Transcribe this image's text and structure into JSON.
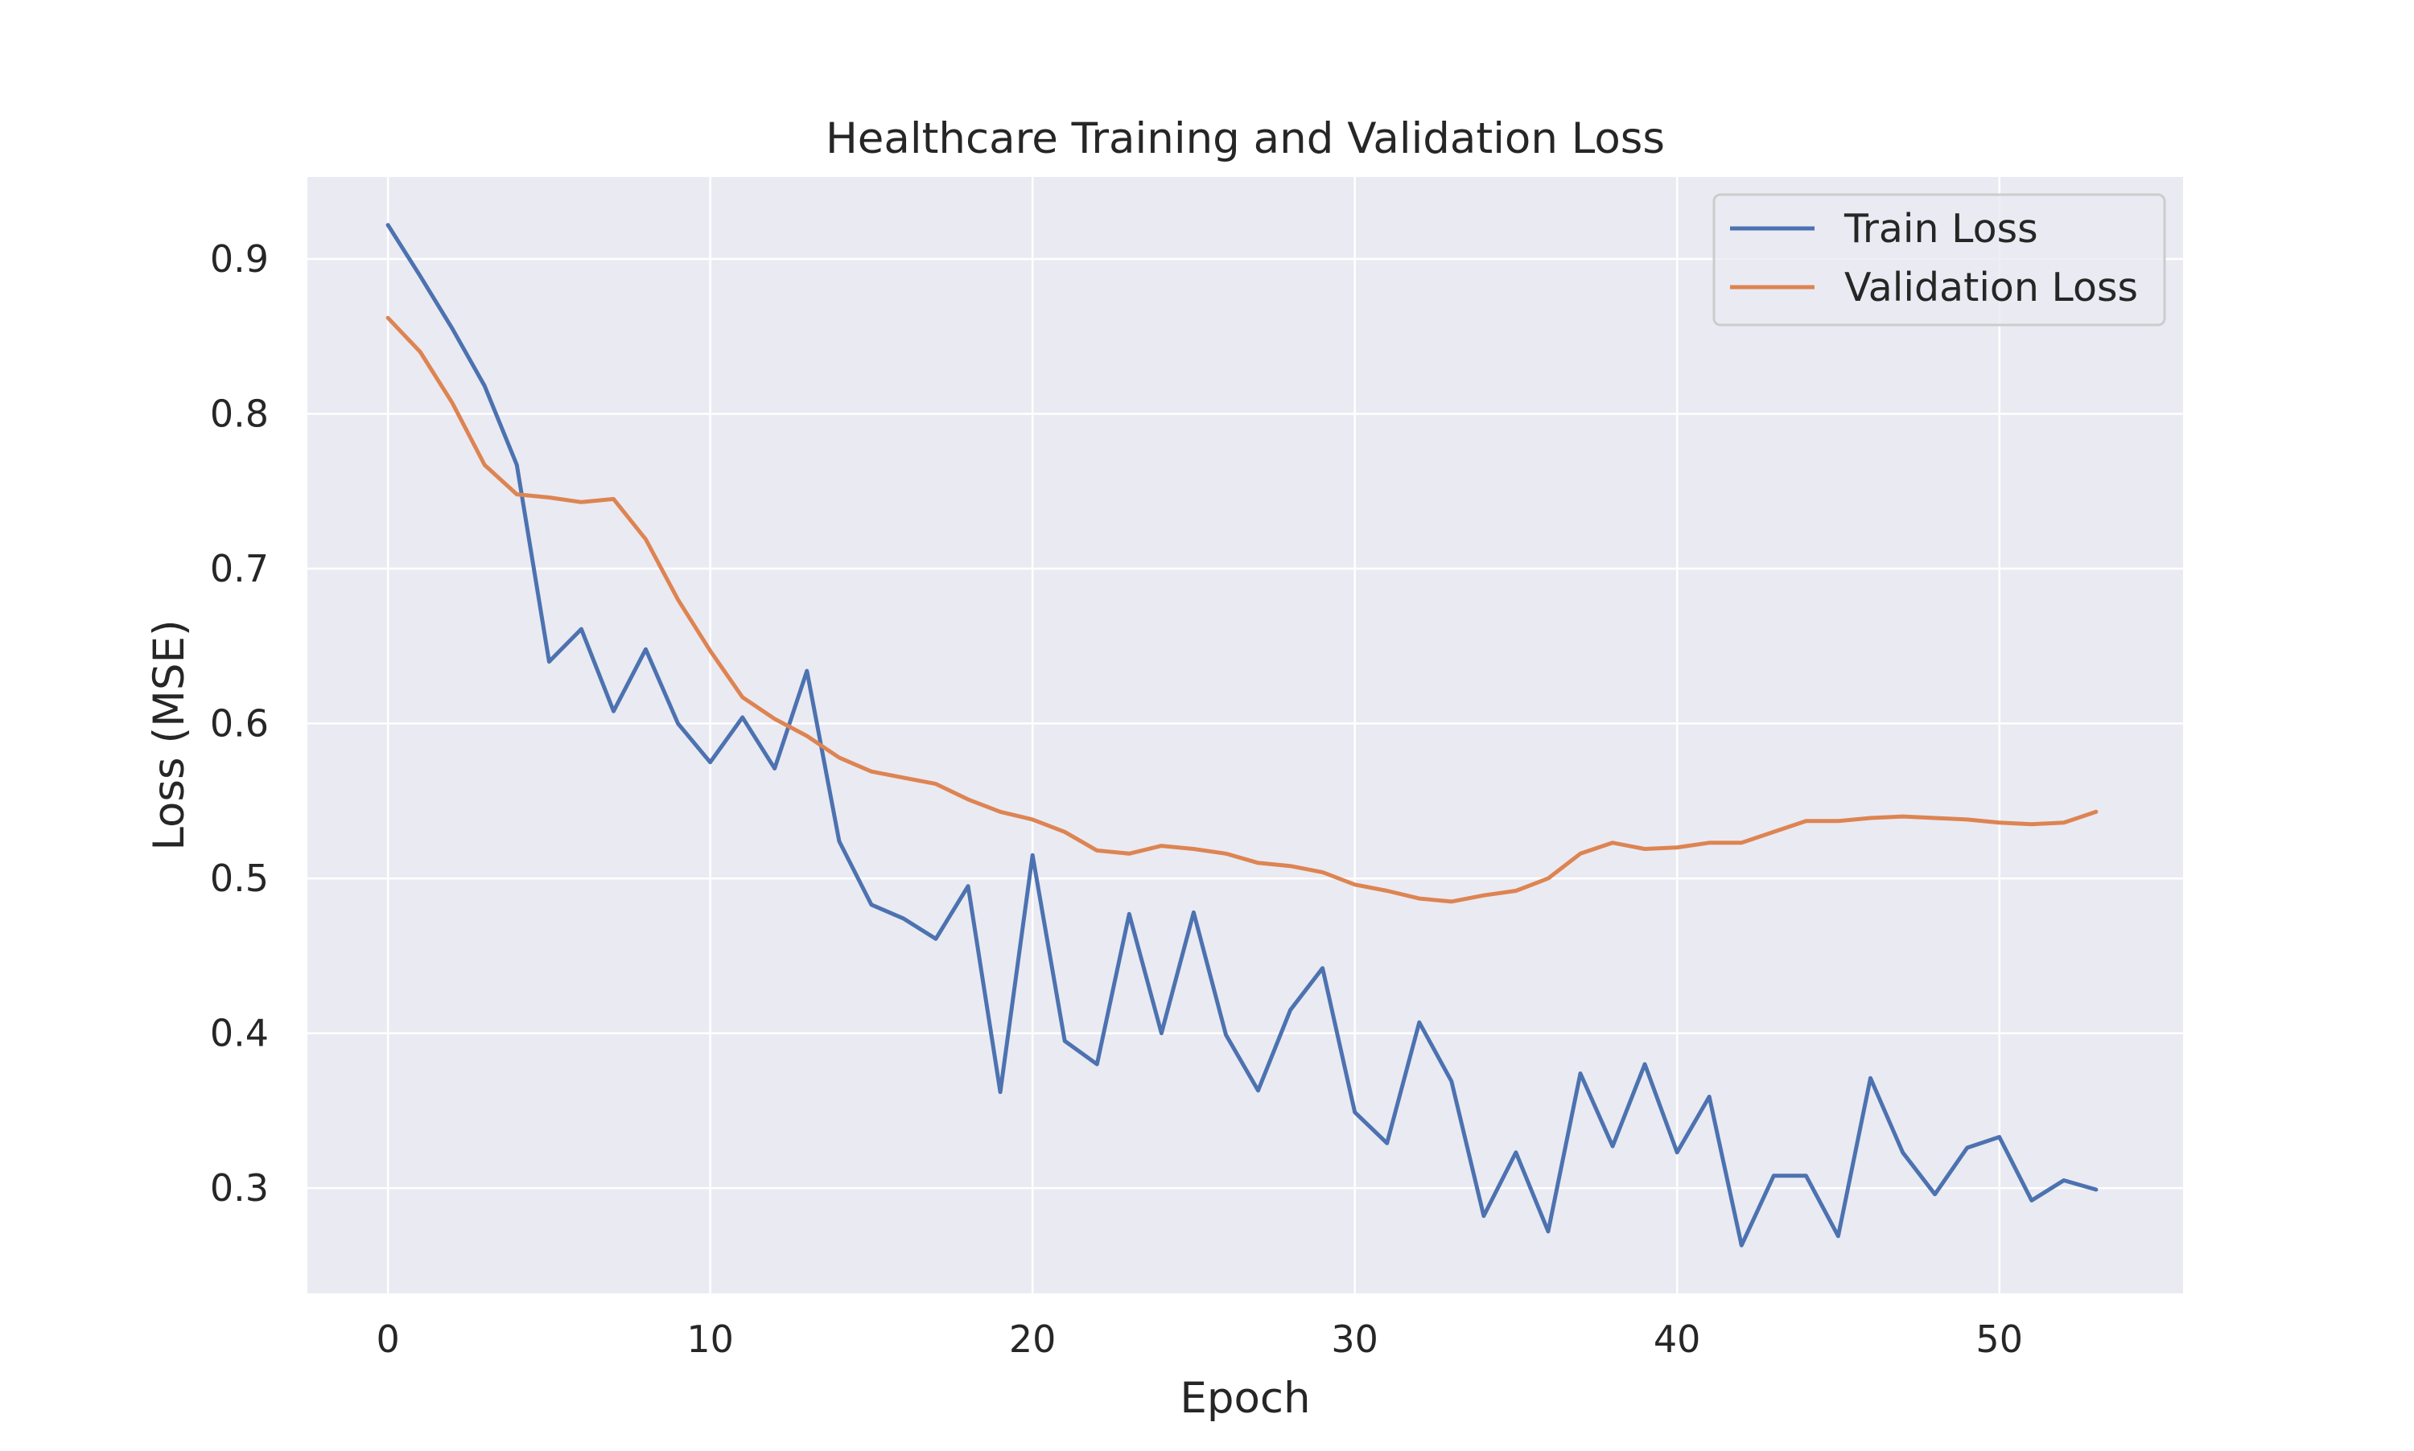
{
  "chart_data": {
    "type": "line",
    "title": "Healthcare Training and Validation Loss",
    "xlabel": "Epoch",
    "ylabel": "Loss (MSE)",
    "xlim": [
      -2.5,
      55.7
    ],
    "ylim": [
      0.232,
      0.953
    ],
    "xticks": [
      0,
      10,
      20,
      30,
      40,
      50
    ],
    "yticks": [
      0.3,
      0.4,
      0.5,
      0.6,
      0.7,
      0.8,
      0.9
    ],
    "grid": true,
    "legend_position": "top-right",
    "colors": {
      "plot_bg": "#eaeaf2",
      "grid": "#ffffff",
      "train": "#4c72b0",
      "validation": "#dd8452"
    },
    "x": [
      0,
      1,
      2,
      3,
      4,
      5,
      6,
      7,
      8,
      9,
      10,
      11,
      12,
      13,
      14,
      15,
      16,
      17,
      18,
      19,
      20,
      21,
      22,
      23,
      24,
      25,
      26,
      27,
      28,
      29,
      30,
      31,
      32,
      33,
      34,
      35,
      36,
      37,
      38,
      39,
      40,
      41,
      42,
      43,
      44,
      45,
      46,
      47,
      48,
      49,
      50,
      51,
      52,
      53
    ],
    "series": [
      {
        "name": "Train Loss",
        "values": [
          0.922,
          0.889,
          0.855,
          0.818,
          0.767,
          0.64,
          0.661,
          0.608,
          0.648,
          0.6,
          0.575,
          0.604,
          0.571,
          0.634,
          0.524,
          0.483,
          0.474,
          0.461,
          0.495,
          0.362,
          0.515,
          0.395,
          0.38,
          0.477,
          0.4,
          0.478,
          0.399,
          0.363,
          0.415,
          0.442,
          0.349,
          0.329,
          0.407,
          0.369,
          0.282,
          0.323,
          0.272,
          0.374,
          0.327,
          0.38,
          0.323,
          0.359,
          0.263,
          0.308,
          0.308,
          0.269,
          0.371,
          0.323,
          0.296,
          0.326,
          0.333,
          0.292,
          0.305,
          0.299
        ]
      },
      {
        "name": "Validation Loss",
        "values": [
          0.862,
          0.84,
          0.807,
          0.767,
          0.748,
          0.746,
          0.743,
          0.745,
          0.719,
          0.68,
          0.647,
          0.617,
          0.603,
          0.592,
          0.578,
          0.569,
          0.565,
          0.561,
          0.551,
          0.543,
          0.538,
          0.53,
          0.518,
          0.516,
          0.521,
          0.519,
          0.516,
          0.51,
          0.508,
          0.504,
          0.496,
          0.492,
          0.487,
          0.485,
          0.489,
          0.492,
          0.5,
          0.516,
          0.523,
          0.519,
          0.52,
          0.523,
          0.523,
          0.53,
          0.537,
          0.537,
          0.539,
          0.54,
          0.539,
          0.538,
          0.536,
          0.535,
          0.536,
          0.543
        ]
      }
    ]
  }
}
